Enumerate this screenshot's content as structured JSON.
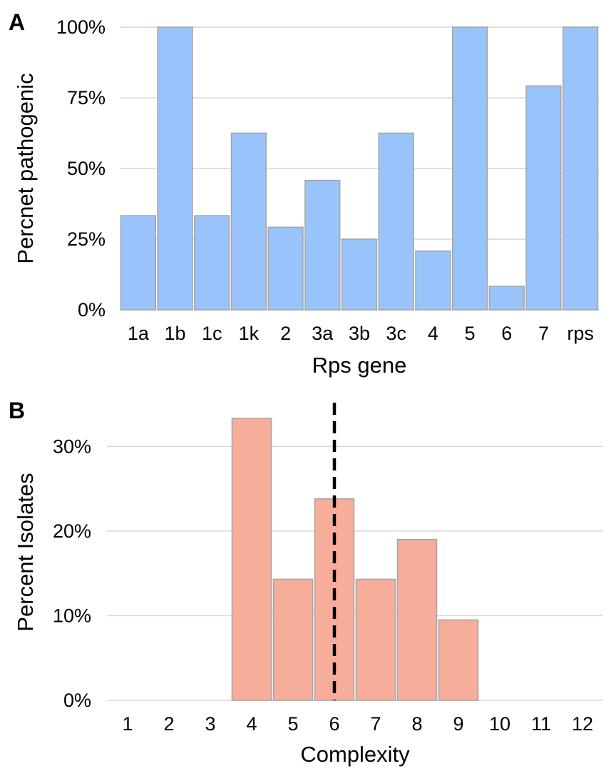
{
  "chart_data": [
    {
      "type": "bar",
      "panel_label": "A",
      "categories": [
        "1a",
        "1b",
        "1c",
        "1k",
        "2",
        "3a",
        "3b",
        "3c",
        "4",
        "5",
        "6",
        "7",
        "rps"
      ],
      "values": [
        33.3,
        100,
        33.3,
        62.5,
        29.2,
        45.8,
        25,
        62.5,
        20.8,
        100,
        8.3,
        79.2,
        100
      ],
      "xlabel": "Rps gene",
      "ylabel": "Percnet pathogenic",
      "ylim": [
        0,
        100
      ],
      "yticks": [
        0,
        25,
        50,
        75,
        100
      ],
      "ytick_labels": [
        "0%",
        "25%",
        "50%",
        "75%",
        "100%"
      ],
      "bar_color": "#99c4fb",
      "bar_edge_color": "#a6a6a6",
      "grid": true,
      "legend": "none"
    },
    {
      "type": "bar",
      "panel_label": "B",
      "categories": [
        "1",
        "2",
        "3",
        "4",
        "5",
        "6",
        "7",
        "8",
        "9",
        "10",
        "11",
        "12"
      ],
      "values": [
        0,
        0,
        0,
        33.3,
        14.3,
        23.8,
        14.3,
        19,
        9.5,
        0,
        0,
        0
      ],
      "xlabel": "Complexity",
      "ylabel": "Percent Isolates",
      "ylim": [
        0,
        35
      ],
      "yticks": [
        0,
        10,
        20,
        30
      ],
      "ytick_labels": [
        "0%",
        "10%",
        "20%",
        "30%"
      ],
      "reference_line": {
        "x": 6,
        "style": "dashed",
        "color": "#000000"
      },
      "bar_color": "#f6ae9b",
      "bar_edge_color": "#a6a6a6",
      "grid": true,
      "legend": "none"
    }
  ]
}
